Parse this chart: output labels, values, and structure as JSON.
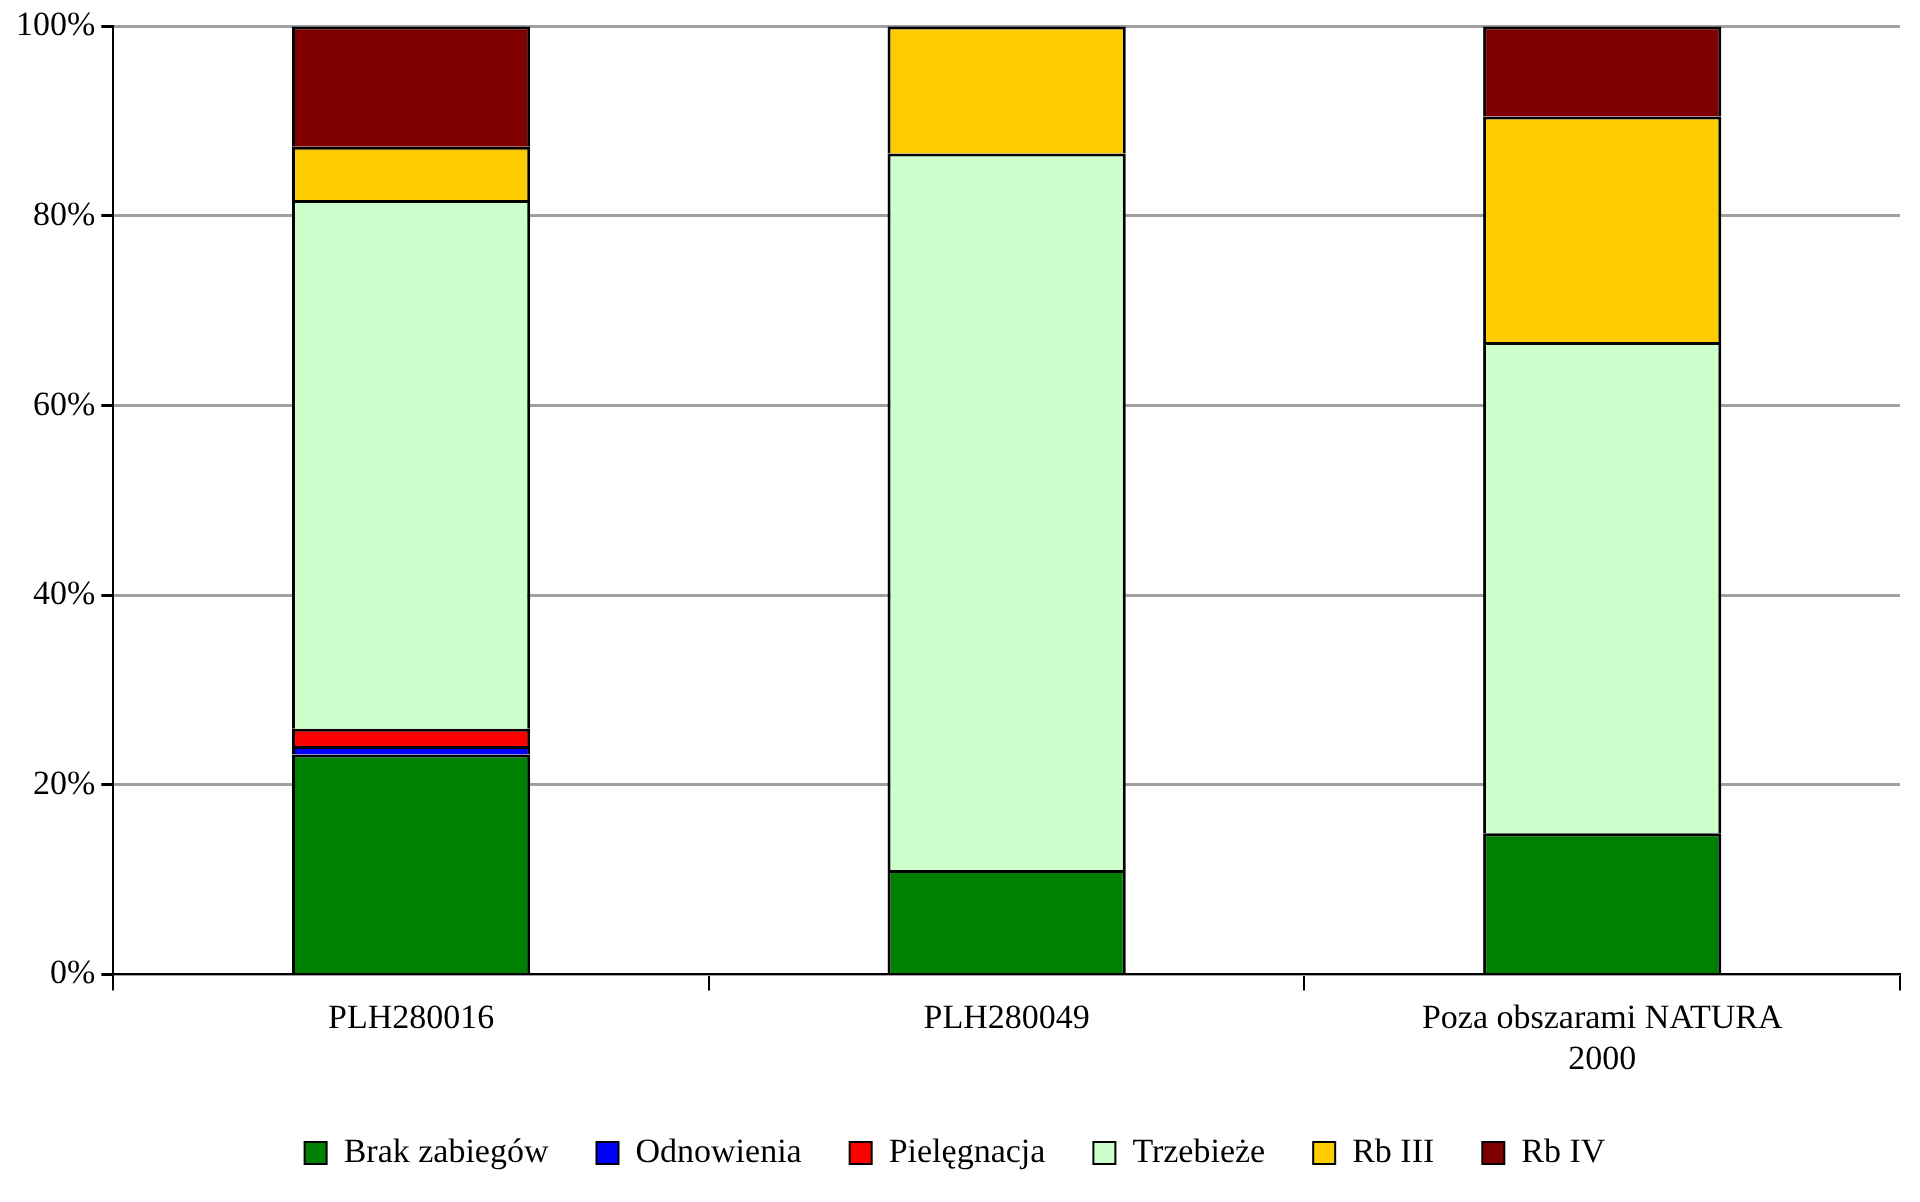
{
  "chart_data": {
    "type": "bar",
    "stacked": true,
    "categories": [
      "PLH280016",
      "PLH280049",
      "Poza obszarami NATURA 2000"
    ],
    "series": [
      {
        "name": "Brak zabiegów",
        "color": "#008000",
        "values": [
          23.2,
          11,
          14.9
        ]
      },
      {
        "name": "Odnowienia",
        "color": "#0000ff",
        "values": [
          0.9,
          0,
          0
        ]
      },
      {
        "name": "Pielęgnacja",
        "color": "#ff0000",
        "values": [
          1.8,
          0,
          0
        ]
      },
      {
        "name": "Trzebieże",
        "color": "#ccffcc",
        "values": [
          55.8,
          75.6,
          51.8
        ]
      },
      {
        "name": "Rb III",
        "color": "#ffcc00",
        "values": [
          5.6,
          13.4,
          23.8
        ]
      },
      {
        "name": "Rb IV",
        "color": "#800000",
        "values": [
          12.7,
          0,
          9.5
        ]
      }
    ],
    "ylim": [
      0,
      100
    ],
    "yticks": [
      {
        "value": 0,
        "label": "0%"
      },
      {
        "value": 20,
        "label": "20%"
      },
      {
        "value": 40,
        "label": "40%"
      },
      {
        "value": 60,
        "label": "60%"
      },
      {
        "value": 80,
        "label": "80%"
      },
      {
        "value": 100,
        "label": "100%"
      }
    ],
    "grid": "y",
    "legend": "bottom"
  }
}
